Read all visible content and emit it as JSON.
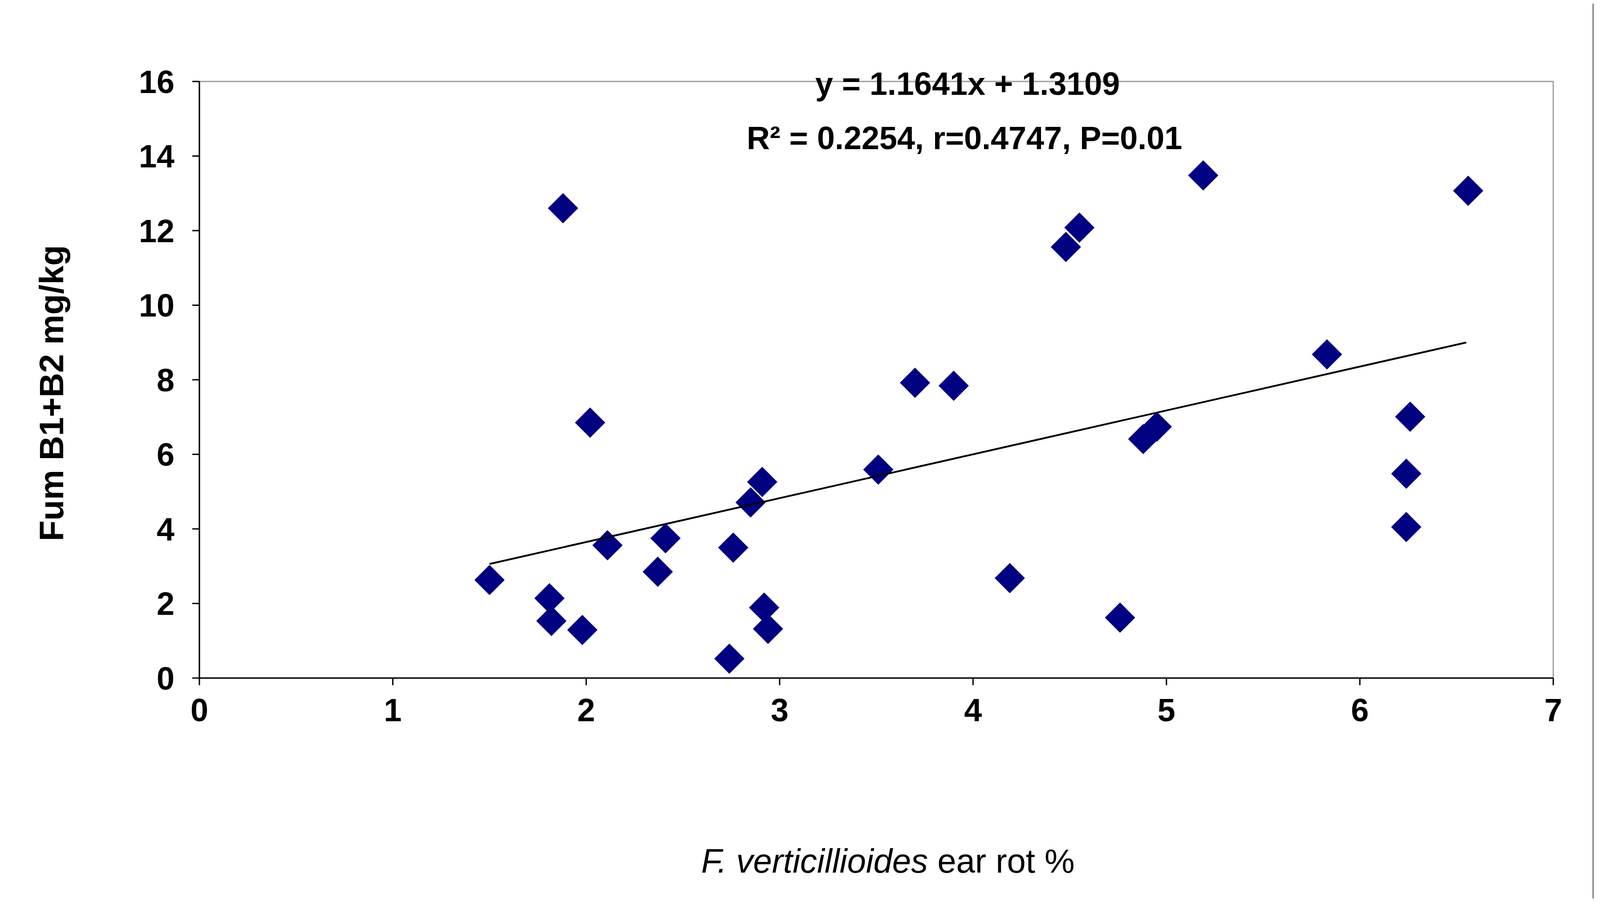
{
  "chart_data": {
    "type": "scatter",
    "xlabel": "F. verticillioides ear rot %",
    "ylabel": "Fum B1+B2 mg/kg",
    "annotations": [
      "y = 1.1641x + 1.3109",
      "R² = 0.2254, r=0.4747, P=0.01"
    ],
    "xlim": [
      0,
      7
    ],
    "xticks": [
      0,
      1,
      2,
      3,
      4,
      5,
      6,
      7
    ],
    "ylim": [
      0,
      16
    ],
    "yticks": [
      0,
      2,
      4,
      6,
      8,
      10,
      12,
      14,
      16
    ],
    "grid": false,
    "series": [
      {
        "type": "scatter",
        "marker": "diamond",
        "color": "#000080",
        "x": [
          1.5,
          1.81,
          1.82,
          1.98,
          1.88,
          2.02,
          2.11,
          2.37,
          2.41,
          2.74,
          2.76,
          2.85,
          2.91,
          2.92,
          2.94,
          3.51,
          3.7,
          3.9,
          4.19,
          4.48,
          4.55,
          4.76,
          4.88,
          4.95,
          5.19,
          5.83,
          6.24,
          6.24,
          6.26,
          6.56
        ],
        "values": [
          2.63,
          2.14,
          1.53,
          1.29,
          12.6,
          6.85,
          3.56,
          2.85,
          3.75,
          0.52,
          3.5,
          4.71,
          5.26,
          1.89,
          1.32,
          5.59,
          7.92,
          7.84,
          2.68,
          11.56,
          12.08,
          1.62,
          6.41,
          6.74,
          13.48,
          8.68,
          4.05,
          5.48,
          7.01,
          13.07
        ]
      },
      {
        "type": "line",
        "line_style": "solid",
        "color": "#000000",
        "x": [
          1.5,
          6.55
        ],
        "values": [
          3.06,
          9.0
        ]
      }
    ]
  }
}
